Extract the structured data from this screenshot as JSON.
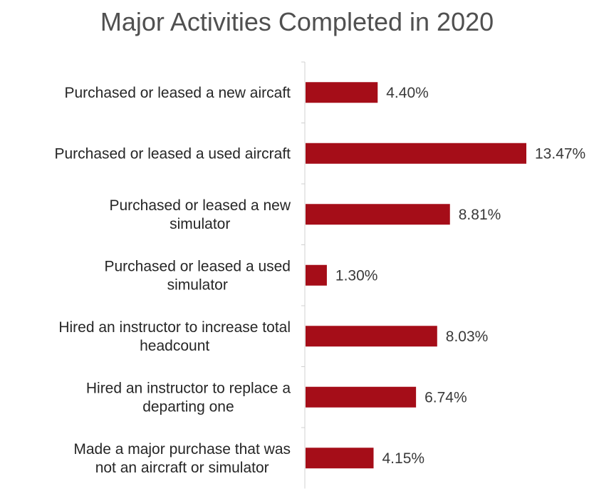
{
  "chart_data": {
    "type": "bar",
    "orientation": "horizontal",
    "title": "Major Activities Completed in 2020",
    "categories": [
      "Purchased or leased a new aircaft",
      "Purchased or leased a used aircraft",
      "Purchased or leased a new simulator",
      "Purchased or leased a used simulator",
      "Hired an instructor to increase total headcount",
      "Hired an instructor to replace a departing one",
      "Made a major purchase that was not an aircraft or simulator"
    ],
    "category_lines": [
      [
        "Purchased or leased a new aircaft"
      ],
      [
        "Purchased or leased a used aircraft"
      ],
      [
        "Purchased or leased a new",
        "simulator"
      ],
      [
        "Purchased or leased a used",
        "simulator"
      ],
      [
        "Hired an instructor to increase total",
        "headcount"
      ],
      [
        "Hired an instructor to replace a",
        "departing one"
      ],
      [
        "Made a major purchase that was",
        "not an aircraft or simulator"
      ]
    ],
    "values": [
      4.4,
      13.47,
      8.81,
      1.3,
      8.03,
      6.74,
      4.15
    ],
    "value_labels": [
      "4.40%",
      "13.47%",
      "8.81%",
      "1.30%",
      "8.03%",
      "6.74%",
      "4.15%"
    ],
    "unit": "%",
    "xlim": [
      0,
      13.47
    ],
    "bar_color": "#a50d18",
    "grid": false,
    "legend": "none"
  }
}
